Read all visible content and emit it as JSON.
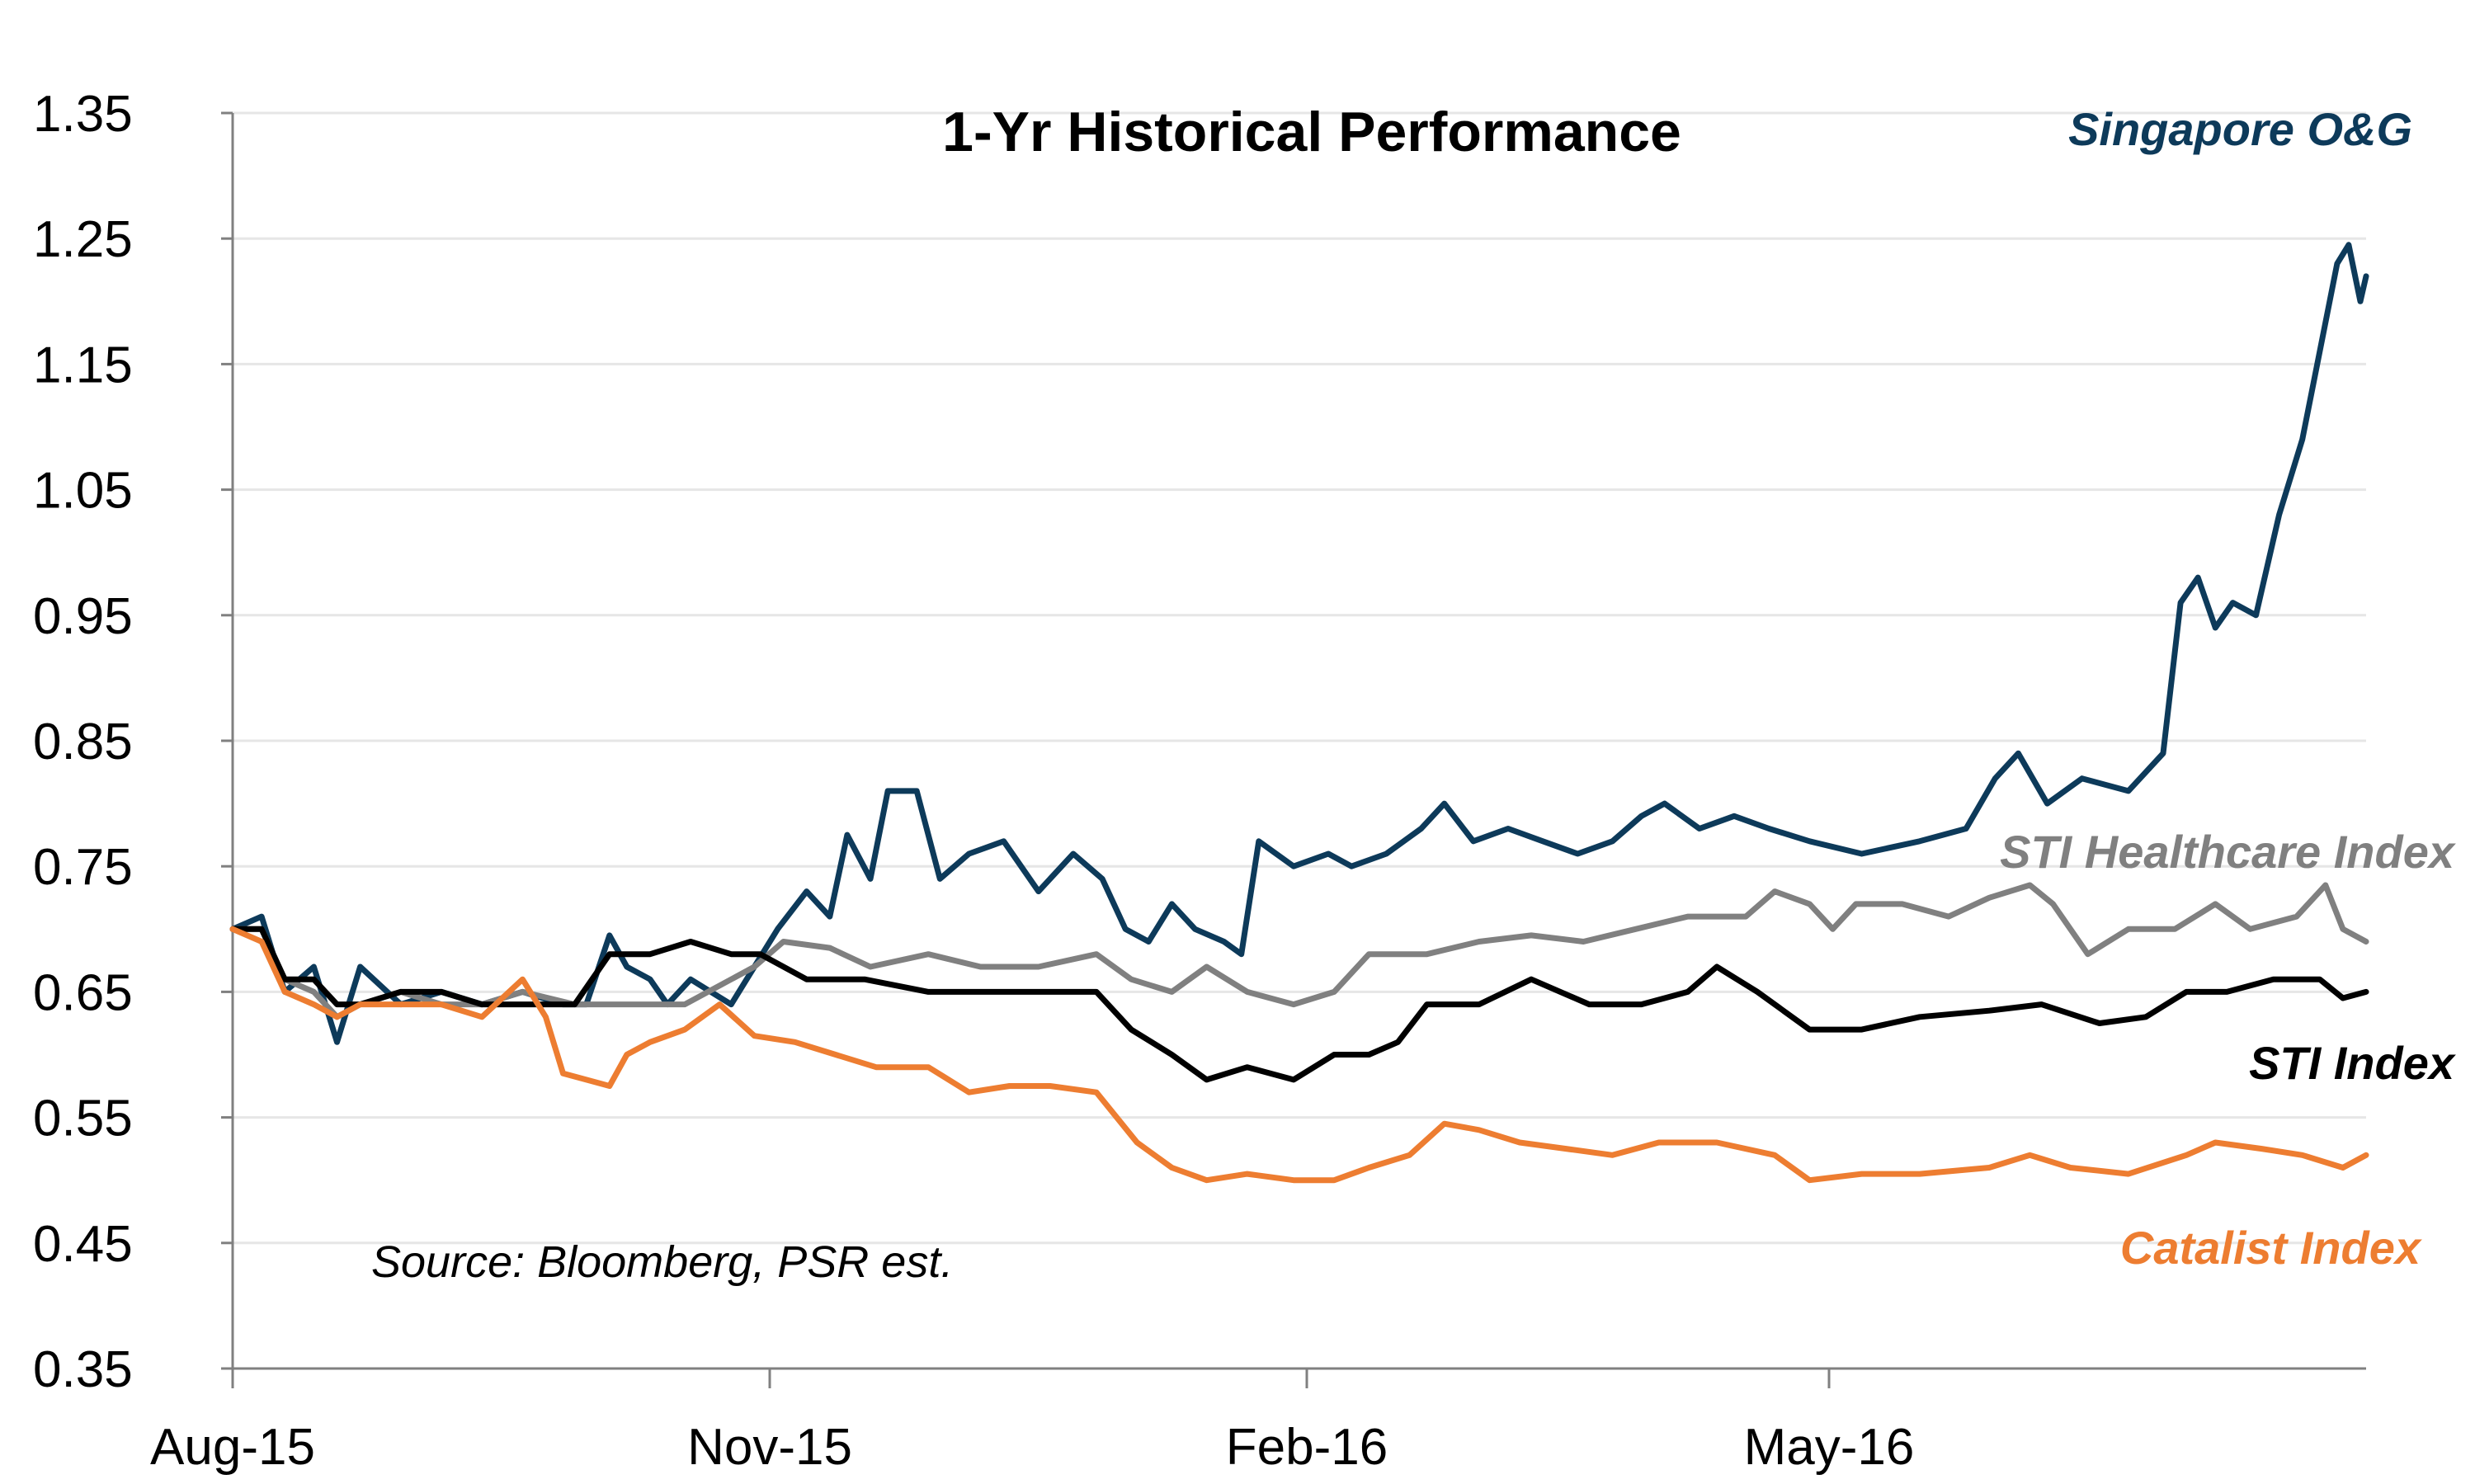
{
  "chart_data": {
    "type": "line",
    "title": "1-Yr Historical Performance",
    "source": "Source: Bloomberg, PSR est.",
    "xlabel": "",
    "ylabel": "",
    "ylim": [
      0.35,
      1.35
    ],
    "y_ticks": [
      "0.35",
      "0.45",
      "0.55",
      "0.65",
      "0.75",
      "0.85",
      "0.95",
      "1.05",
      "1.15",
      "1.25",
      "1.35"
    ],
    "x_ticks": [
      "Aug-15",
      "Nov-15",
      "Feb-16",
      "May-16"
    ],
    "grid": "horizontal",
    "legend": "inline labels at right of each series",
    "x_range": [
      "2015-08-03",
      "2016-08-05"
    ],
    "series": [
      {
        "name": "Singapore O&G",
        "color": "#0d3a5a",
        "points": [
          [
            "2015-08-03",
            0.7
          ],
          [
            "2015-08-08",
            0.71
          ],
          [
            "2015-08-12",
            0.65
          ],
          [
            "2015-08-17",
            0.67
          ],
          [
            "2015-08-21",
            0.61
          ],
          [
            "2015-08-25",
            0.67
          ],
          [
            "2015-09-01",
            0.64
          ],
          [
            "2015-09-08",
            0.65
          ],
          [
            "2015-09-15",
            0.64
          ],
          [
            "2015-09-22",
            0.65
          ],
          [
            "2015-09-29",
            0.64
          ],
          [
            "2015-10-03",
            0.64
          ],
          [
            "2015-10-07",
            0.695
          ],
          [
            "2015-10-10",
            0.67
          ],
          [
            "2015-10-14",
            0.66
          ],
          [
            "2015-10-17",
            0.64
          ],
          [
            "2015-10-21",
            0.66
          ],
          [
            "2015-10-28",
            0.64
          ],
          [
            "2015-11-01",
            0.67
          ],
          [
            "2015-11-05",
            0.7
          ],
          [
            "2015-11-10",
            0.73
          ],
          [
            "2015-11-14",
            0.71
          ],
          [
            "2015-11-17",
            0.775
          ],
          [
            "2015-11-21",
            0.74
          ],
          [
            "2015-11-24",
            0.81
          ],
          [
            "2015-11-29",
            0.81
          ],
          [
            "2015-12-03",
            0.74
          ],
          [
            "2015-12-08",
            0.76
          ],
          [
            "2015-12-14",
            0.77
          ],
          [
            "2015-12-20",
            0.73
          ],
          [
            "2015-12-26",
            0.76
          ],
          [
            "2015-12-31",
            0.74
          ],
          [
            "2016-01-04",
            0.7
          ],
          [
            "2016-01-08",
            0.69
          ],
          [
            "2016-01-12",
            0.72
          ],
          [
            "2016-01-16",
            0.7
          ],
          [
            "2016-01-21",
            0.69
          ],
          [
            "2016-01-24",
            0.68
          ],
          [
            "2016-01-27",
            0.77
          ],
          [
            "2016-02-02",
            0.75
          ],
          [
            "2016-02-08",
            0.76
          ],
          [
            "2016-02-12",
            0.75
          ],
          [
            "2016-02-18",
            0.76
          ],
          [
            "2016-02-24",
            0.78
          ],
          [
            "2016-02-28",
            0.8
          ],
          [
            "2016-03-04",
            0.77
          ],
          [
            "2016-03-10",
            0.78
          ],
          [
            "2016-03-16",
            0.77
          ],
          [
            "2016-03-22",
            0.76
          ],
          [
            "2016-03-28",
            0.77
          ],
          [
            "2016-04-02",
            0.79
          ],
          [
            "2016-04-06",
            0.8
          ],
          [
            "2016-04-12",
            0.78
          ],
          [
            "2016-04-18",
            0.79
          ],
          [
            "2016-04-24",
            0.78
          ],
          [
            "2016-05-01",
            0.77
          ],
          [
            "2016-05-10",
            0.76
          ],
          [
            "2016-05-20",
            0.77
          ],
          [
            "2016-05-28",
            0.78
          ],
          [
            "2016-06-02",
            0.82
          ],
          [
            "2016-06-06",
            0.84
          ],
          [
            "2016-06-11",
            0.8
          ],
          [
            "2016-06-17",
            0.82
          ],
          [
            "2016-06-25",
            0.81
          ],
          [
            "2016-07-01",
            0.84
          ],
          [
            "2016-07-04",
            0.96
          ],
          [
            "2016-07-07",
            0.98
          ],
          [
            "2016-07-10",
            0.94
          ],
          [
            "2016-07-13",
            0.96
          ],
          [
            "2016-07-17",
            0.95
          ],
          [
            "2016-07-21",
            1.03
          ],
          [
            "2016-07-25",
            1.09
          ],
          [
            "2016-07-28",
            1.16
          ],
          [
            "2016-07-31",
            1.23
          ],
          [
            "2016-08-02",
            1.245
          ],
          [
            "2016-08-04",
            1.2
          ],
          [
            "2016-08-05",
            1.22
          ]
        ]
      },
      {
        "name": "STI  Healthcare Index",
        "color": "#808080",
        "points": [
          [
            "2015-08-03",
            0.7
          ],
          [
            "2015-08-08",
            0.7
          ],
          [
            "2015-08-12",
            0.66
          ],
          [
            "2015-08-17",
            0.65
          ],
          [
            "2015-08-21",
            0.63
          ],
          [
            "2015-08-25",
            0.64
          ],
          [
            "2015-09-01",
            0.65
          ],
          [
            "2015-09-08",
            0.64
          ],
          [
            "2015-09-15",
            0.64
          ],
          [
            "2015-09-22",
            0.65
          ],
          [
            "2015-10-01",
            0.64
          ],
          [
            "2015-10-10",
            0.64
          ],
          [
            "2015-10-20",
            0.64
          ],
          [
            "2015-11-01",
            0.67
          ],
          [
            "2015-11-06",
            0.69
          ],
          [
            "2015-11-14",
            0.685
          ],
          [
            "2015-11-21",
            0.67
          ],
          [
            "2015-12-01",
            0.68
          ],
          [
            "2015-12-10",
            0.67
          ],
          [
            "2015-12-20",
            0.67
          ],
          [
            "2015-12-30",
            0.68
          ],
          [
            "2016-01-05",
            0.66
          ],
          [
            "2016-01-12",
            0.65
          ],
          [
            "2016-01-18",
            0.67
          ],
          [
            "2016-01-25",
            0.65
          ],
          [
            "2016-02-02",
            0.64
          ],
          [
            "2016-02-09",
            0.65
          ],
          [
            "2016-02-15",
            0.68
          ],
          [
            "2016-02-25",
            0.68
          ],
          [
            "2016-03-05",
            0.69
          ],
          [
            "2016-03-14",
            0.695
          ],
          [
            "2016-03-23",
            0.69
          ],
          [
            "2016-04-01",
            0.7
          ],
          [
            "2016-04-10",
            0.71
          ],
          [
            "2016-04-20",
            0.71
          ],
          [
            "2016-04-25",
            0.73
          ],
          [
            "2016-05-01",
            0.72
          ],
          [
            "2016-05-05",
            0.7
          ],
          [
            "2016-05-09",
            0.72
          ],
          [
            "2016-05-17",
            0.72
          ],
          [
            "2016-05-25",
            0.71
          ],
          [
            "2016-06-01",
            0.725
          ],
          [
            "2016-06-08",
            0.735
          ],
          [
            "2016-06-12",
            0.72
          ],
          [
            "2016-06-18",
            0.68
          ],
          [
            "2016-06-25",
            0.7
          ],
          [
            "2016-07-03",
            0.7
          ],
          [
            "2016-07-10",
            0.72
          ],
          [
            "2016-07-16",
            0.7
          ],
          [
            "2016-07-24",
            0.71
          ],
          [
            "2016-07-29",
            0.735
          ],
          [
            "2016-08-01",
            0.7
          ],
          [
            "2016-08-05",
            0.69
          ]
        ]
      },
      {
        "name": "STI Index",
        "color": "#000000",
        "points": [
          [
            "2015-08-03",
            0.7
          ],
          [
            "2015-08-08",
            0.7
          ],
          [
            "2015-08-12",
            0.66
          ],
          [
            "2015-08-17",
            0.66
          ],
          [
            "2015-08-21",
            0.64
          ],
          [
            "2015-08-25",
            0.64
          ],
          [
            "2015-09-01",
            0.65
          ],
          [
            "2015-09-08",
            0.65
          ],
          [
            "2015-09-15",
            0.64
          ],
          [
            "2015-09-22",
            0.64
          ],
          [
            "2015-10-01",
            0.64
          ],
          [
            "2015-10-07",
            0.68
          ],
          [
            "2015-10-14",
            0.68
          ],
          [
            "2015-10-21",
            0.69
          ],
          [
            "2015-10-28",
            0.68
          ],
          [
            "2015-11-02",
            0.68
          ],
          [
            "2015-11-10",
            0.66
          ],
          [
            "2015-11-20",
            0.66
          ],
          [
            "2015-12-01",
            0.65
          ],
          [
            "2015-12-10",
            0.65
          ],
          [
            "2015-12-20",
            0.65
          ],
          [
            "2015-12-30",
            0.65
          ],
          [
            "2016-01-05",
            0.62
          ],
          [
            "2016-01-12",
            0.6
          ],
          [
            "2016-01-18",
            0.58
          ],
          [
            "2016-01-25",
            0.59
          ],
          [
            "2016-02-02",
            0.58
          ],
          [
            "2016-02-09",
            0.6
          ],
          [
            "2016-02-15",
            0.6
          ],
          [
            "2016-02-20",
            0.61
          ],
          [
            "2016-02-25",
            0.64
          ],
          [
            "2016-03-05",
            0.64
          ],
          [
            "2016-03-14",
            0.66
          ],
          [
            "2016-03-24",
            0.64
          ],
          [
            "2016-04-02",
            0.64
          ],
          [
            "2016-04-10",
            0.65
          ],
          [
            "2016-04-15",
            0.67
          ],
          [
            "2016-04-22",
            0.65
          ],
          [
            "2016-05-01",
            0.62
          ],
          [
            "2016-05-10",
            0.62
          ],
          [
            "2016-05-20",
            0.63
          ],
          [
            "2016-06-01",
            0.635
          ],
          [
            "2016-06-10",
            0.64
          ],
          [
            "2016-06-20",
            0.625
          ],
          [
            "2016-06-28",
            0.63
          ],
          [
            "2016-07-05",
            0.65
          ],
          [
            "2016-07-12",
            0.65
          ],
          [
            "2016-07-20",
            0.66
          ],
          [
            "2016-07-28",
            0.66
          ],
          [
            "2016-08-01",
            0.645
          ],
          [
            "2016-08-05",
            0.65
          ]
        ]
      },
      {
        "name": "Catalist Index",
        "color": "#ed7d31",
        "points": [
          [
            "2015-08-03",
            0.7
          ],
          [
            "2015-08-08",
            0.69
          ],
          [
            "2015-08-12",
            0.65
          ],
          [
            "2015-08-17",
            0.64
          ],
          [
            "2015-08-21",
            0.63
          ],
          [
            "2015-08-25",
            0.64
          ],
          [
            "2015-09-01",
            0.64
          ],
          [
            "2015-09-08",
            0.64
          ],
          [
            "2015-09-15",
            0.63
          ],
          [
            "2015-09-22",
            0.66
          ],
          [
            "2015-09-26",
            0.63
          ],
          [
            "2015-09-29",
            0.585
          ],
          [
            "2015-10-03",
            0.58
          ],
          [
            "2015-10-07",
            0.575
          ],
          [
            "2015-10-10",
            0.6
          ],
          [
            "2015-10-14",
            0.61
          ],
          [
            "2015-10-20",
            0.62
          ],
          [
            "2015-10-26",
            0.64
          ],
          [
            "2015-11-01",
            0.615
          ],
          [
            "2015-11-08",
            0.61
          ],
          [
            "2015-11-15",
            0.6
          ],
          [
            "2015-11-22",
            0.59
          ],
          [
            "2015-12-01",
            0.59
          ],
          [
            "2015-12-08",
            0.57
          ],
          [
            "2015-12-15",
            0.575
          ],
          [
            "2015-12-22",
            0.575
          ],
          [
            "2015-12-30",
            0.57
          ],
          [
            "2016-01-06",
            0.53
          ],
          [
            "2016-01-12",
            0.51
          ],
          [
            "2016-01-18",
            0.5
          ],
          [
            "2016-01-25",
            0.505
          ],
          [
            "2016-02-02",
            0.5
          ],
          [
            "2016-02-09",
            0.5
          ],
          [
            "2016-02-15",
            0.51
          ],
          [
            "2016-02-22",
            0.52
          ],
          [
            "2016-02-28",
            0.545
          ],
          [
            "2016-03-05",
            0.54
          ],
          [
            "2016-03-12",
            0.53
          ],
          [
            "2016-03-20",
            0.525
          ],
          [
            "2016-03-28",
            0.52
          ],
          [
            "2016-04-05",
            0.53
          ],
          [
            "2016-04-15",
            0.53
          ],
          [
            "2016-04-25",
            0.52
          ],
          [
            "2016-05-01",
            0.5
          ],
          [
            "2016-05-10",
            0.505
          ],
          [
            "2016-05-20",
            0.505
          ],
          [
            "2016-06-01",
            0.51
          ],
          [
            "2016-06-08",
            0.52
          ],
          [
            "2016-06-15",
            0.51
          ],
          [
            "2016-06-25",
            0.505
          ],
          [
            "2016-07-05",
            0.52
          ],
          [
            "2016-07-10",
            0.53
          ],
          [
            "2016-07-18",
            0.525
          ],
          [
            "2016-07-25",
            0.52
          ],
          [
            "2016-08-01",
            0.51
          ],
          [
            "2016-08-05",
            0.52
          ]
        ]
      }
    ]
  }
}
